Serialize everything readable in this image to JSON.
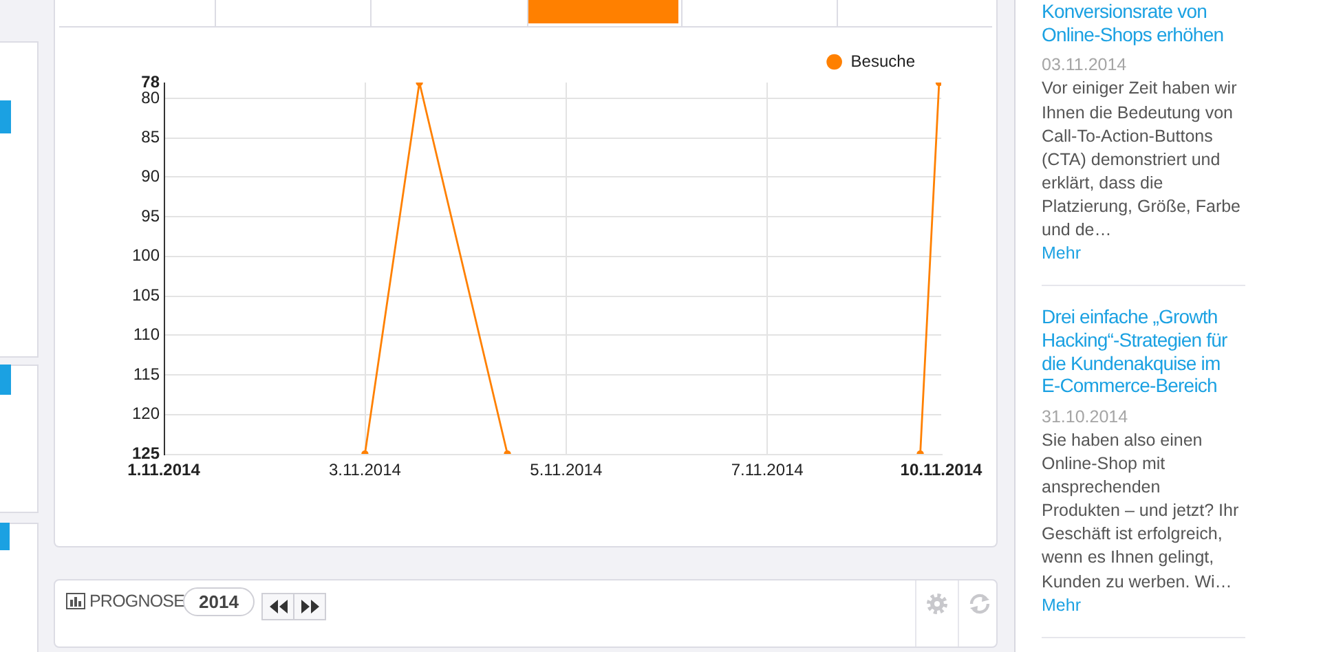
{
  "chart_data": {
    "type": "line",
    "x": [
      "2014-11-03T00:00",
      "2014-11-03T13:00",
      "2014-11-04T10:00",
      "2014-11-06T00:00",
      "2014-11-08T12:30",
      "2014-11-08T17:00"
    ],
    "series": [
      {
        "name": "Besuche",
        "color": "#ff8000",
        "values": [
          125,
          78,
          125,
          null,
          125,
          78
        ]
      }
    ],
    "xlim": [
      "2014-11-01",
      "2014-11-08T17:30"
    ],
    "xticks": [
      {
        "value": "2014-11-01",
        "label": "1.11.2014"
      },
      {
        "value": "2014-11-03",
        "label": "3.11.2014"
      },
      {
        "value": "2014-11-05",
        "label": "5.11.2014"
      },
      {
        "value": "2014-11-07",
        "label": "7.11.2014"
      },
      {
        "value": "2014-11-08T17:30",
        "label": "10.11.2014"
      }
    ],
    "ylim": [
      125,
      78
    ],
    "yticks": [
      78,
      80,
      85,
      90,
      95,
      100,
      105,
      110,
      115,
      120,
      125
    ],
    "grid": true,
    "legend": "top right",
    "marker": "circle",
    "annotations": [
      "Konversionsrate von Online-Shops erhöhen",
      "03.11.2014",
      "Vor einiger Zeit haben wir Ihnen die Bedeutung von Call-To-Action-Buttons (CTA) demonstriert und erklärt, dass die Platzierung, Größe, Farbe und de…",
      "Mehr",
      "Drei einfache „Growth Hacking“-Strategien für die Kundenakquise im E-Commerce-Bereich",
      "31.10.2014",
      "Sie haben also einen Online-Shop mit ansprechenden Produkten – und jetzt? Ihr Geschäft ist erfolgreich, wenn es Ihnen gelingt, Kunden zu werben. Wi…",
      "Mehr",
      "PROGNOSE",
      "2014"
    ]
  }
}
